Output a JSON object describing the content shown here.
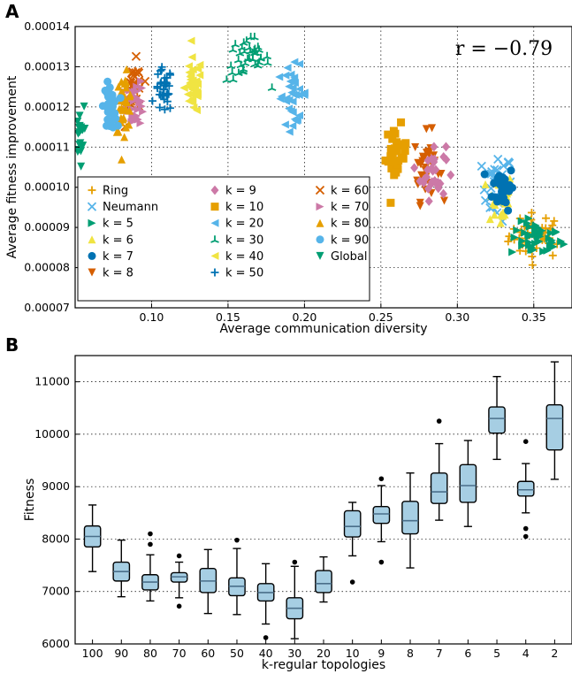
{
  "chart_data": [
    {
      "type": "scatter",
      "panel_label": "A",
      "xlabel": "Average communication diversity",
      "ylabel": "Average fitness improvement",
      "xlim": [
        0.05,
        0.375
      ],
      "ylim": [
        7e-05,
        0.00014
      ],
      "xticks": [
        0.1,
        0.15,
        0.2,
        0.25,
        0.3,
        0.35
      ],
      "xtick_labels": [
        "0.10",
        "0.15",
        "0.20",
        "0.25",
        "0.30",
        "0.35"
      ],
      "yticks": [
        7e-05,
        8e-05,
        9e-05,
        0.0001,
        0.00011,
        0.00012,
        0.00013,
        0.00014
      ],
      "ytick_labels": [
        "0.00007",
        "0.00008",
        "0.00009",
        "0.00010",
        "0.00011",
        "0.00012",
        "0.00013",
        "0.00014"
      ],
      "grid": "dotted",
      "annotation": "r = −0.79",
      "legend_position": "lower-left",
      "series": [
        {
          "name": "Ring",
          "marker": "plus",
          "color": "#E69F00",
          "cx": 0.352,
          "cy": 8.8e-05,
          "sx": 0.013,
          "sy": 4e-06,
          "n": 40
        },
        {
          "name": "Neumann",
          "marker": "x",
          "color": "#56B4E9",
          "cx": 0.326,
          "cy": 0.0001,
          "sx": 0.007,
          "sy": 6e-06,
          "n": 30
        },
        {
          "name": "k = 5",
          "marker": "tri-right",
          "color": "#009E73",
          "cx": 0.352,
          "cy": 8.7e-05,
          "sx": 0.012,
          "sy": 3e-06,
          "n": 45
        },
        {
          "name": "k = 6",
          "marker": "tri-up",
          "color": "#F0E442",
          "cx": 0.328,
          "cy": 9.7e-05,
          "sx": 0.006,
          "sy": 5e-06,
          "n": 30
        },
        {
          "name": "k = 7",
          "marker": "circle",
          "color": "#0072B2",
          "cx": 0.33,
          "cy": 0.0001,
          "sx": 0.005,
          "sy": 4e-06,
          "n": 35
        },
        {
          "name": "k = 8",
          "marker": "tri-down",
          "color": "#D55E00",
          "cx": 0.28,
          "cy": 0.000105,
          "sx": 0.006,
          "sy": 6e-06,
          "n": 35
        },
        {
          "name": "k = 9",
          "marker": "diamond",
          "color": "#CC79A7",
          "cx": 0.284,
          "cy": 0.000104,
          "sx": 0.006,
          "sy": 5e-06,
          "n": 30
        },
        {
          "name": "k = 10",
          "marker": "square",
          "color": "#E69F00",
          "cx": 0.26,
          "cy": 0.000108,
          "sx": 0.005,
          "sy": 5e-06,
          "n": 30
        },
        {
          "name": "k = 20",
          "marker": "tri-left",
          "color": "#56B4E9",
          "cx": 0.192,
          "cy": 0.000123,
          "sx": 0.007,
          "sy": 5e-06,
          "n": 35
        },
        {
          "name": "k = 30",
          "marker": "thin-tri-up",
          "color": "#009E73",
          "cx": 0.163,
          "cy": 0.000132,
          "sx": 0.01,
          "sy": 4e-06,
          "n": 40
        },
        {
          "name": "k = 40",
          "marker": "tri-left",
          "color": "#F0E442",
          "cx": 0.127,
          "cy": 0.000125,
          "sx": 0.004,
          "sy": 5e-06,
          "n": 45
        },
        {
          "name": "k = 50",
          "marker": "plus",
          "color": "#0072B2",
          "cx": 0.108,
          "cy": 0.000124,
          "sx": 0.004,
          "sy": 4e-06,
          "n": 35
        },
        {
          "name": "k = 60",
          "marker": "x",
          "color": "#D55E00",
          "cx": 0.089,
          "cy": 0.000124,
          "sx": 0.004,
          "sy": 5e-06,
          "n": 30
        },
        {
          "name": "k = 70",
          "marker": "tri-right",
          "color": "#CC79A7",
          "cx": 0.09,
          "cy": 0.000121,
          "sx": 0.004,
          "sy": 4e-06,
          "n": 30
        },
        {
          "name": "k = 80",
          "marker": "tri-up",
          "color": "#E69F00",
          "cx": 0.082,
          "cy": 0.000121,
          "sx": 0.004,
          "sy": 5e-06,
          "n": 35
        },
        {
          "name": "k = 90",
          "marker": "circle",
          "color": "#56B4E9",
          "cx": 0.073,
          "cy": 0.00012,
          "sx": 0.003,
          "sy": 4e-06,
          "n": 35
        },
        {
          "name": "Global",
          "marker": "tri-down",
          "color": "#009E73",
          "cx": 0.053,
          "cy": 0.000113,
          "sx": 0.002,
          "sy": 5e-06,
          "n": 20
        }
      ]
    },
    {
      "type": "box",
      "panel_label": "B",
      "xlabel": "k-regular topologies",
      "ylabel": "Fitness",
      "ylim": [
        6000,
        11500
      ],
      "yticks": [
        6000,
        7000,
        8000,
        9000,
        10000,
        11000
      ],
      "ytick_labels": [
        "6000",
        "7000",
        "8000",
        "9000",
        "10000",
        "11000"
      ],
      "grid": "dotted-horizontal",
      "box_color": "#a6cee3",
      "median_color": "#4a6f8a",
      "categories": [
        "100",
        "90",
        "80",
        "70",
        "60",
        "50",
        "40",
        "30",
        "20",
        "10",
        "9",
        "8",
        "7",
        "6",
        "5",
        "4",
        "2"
      ],
      "boxes": [
        {
          "whislo": 7380,
          "q1": 7850,
          "med": 8050,
          "q3": 8250,
          "whishi": 8650,
          "fliers": []
        },
        {
          "whislo": 6900,
          "q1": 7200,
          "med": 7380,
          "q3": 7560,
          "whishi": 7980,
          "fliers": []
        },
        {
          "whislo": 6820,
          "q1": 7030,
          "med": 7180,
          "q3": 7320,
          "whishi": 7700,
          "fliers": [
            7900,
            8100
          ]
        },
        {
          "whislo": 6880,
          "q1": 7180,
          "med": 7280,
          "q3": 7360,
          "whishi": 7560,
          "fliers": [
            6720,
            7680
          ]
        },
        {
          "whislo": 6580,
          "q1": 6980,
          "med": 7200,
          "q3": 7440,
          "whishi": 7800,
          "fliers": []
        },
        {
          "whislo": 6560,
          "q1": 6920,
          "med": 7100,
          "q3": 7260,
          "whishi": 7820,
          "fliers": [
            7980
          ]
        },
        {
          "whislo": 6380,
          "q1": 6820,
          "med": 6980,
          "q3": 7150,
          "whishi": 7530,
          "fliers": [
            6120
          ]
        },
        {
          "whislo": 6100,
          "q1": 6480,
          "med": 6680,
          "q3": 6880,
          "whishi": 7480,
          "fliers": [
            7560
          ]
        },
        {
          "whislo": 6800,
          "q1": 6980,
          "med": 7150,
          "q3": 7400,
          "whishi": 7660,
          "fliers": []
        },
        {
          "whislo": 7680,
          "q1": 8040,
          "med": 8240,
          "q3": 8540,
          "whishi": 8700,
          "fliers": [
            7180
          ]
        },
        {
          "whislo": 7950,
          "q1": 8300,
          "med": 8480,
          "q3": 8620,
          "whishi": 9020,
          "fliers": [
            7560,
            9150
          ]
        },
        {
          "whislo": 7450,
          "q1": 8100,
          "med": 8350,
          "q3": 8720,
          "whishi": 9260,
          "fliers": []
        },
        {
          "whislo": 8360,
          "q1": 8680,
          "med": 8900,
          "q3": 9260,
          "whishi": 9820,
          "fliers": [
            10250
          ]
        },
        {
          "whislo": 8240,
          "q1": 8700,
          "med": 9020,
          "q3": 9420,
          "whishi": 9880,
          "fliers": []
        },
        {
          "whislo": 9520,
          "q1": 10020,
          "med": 10300,
          "q3": 10520,
          "whishi": 11100,
          "fliers": []
        },
        {
          "whislo": 8500,
          "q1": 8820,
          "med": 8940,
          "q3": 9100,
          "whishi": 9440,
          "fliers": [
            8200,
            8050,
            9860
          ]
        },
        {
          "whislo": 9140,
          "q1": 9700,
          "med": 10300,
          "q3": 10560,
          "whishi": 11380,
          "fliers": []
        }
      ]
    }
  ]
}
